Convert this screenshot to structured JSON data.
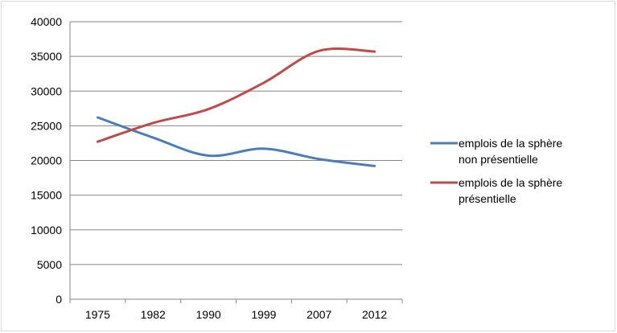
{
  "chart_data": {
    "type": "line",
    "categories": [
      "1975",
      "1982",
      "1990",
      "1999",
      "2007",
      "2012"
    ],
    "ylim": [
      0,
      40000
    ],
    "yticks": [
      "0",
      "5000",
      "10000",
      "15000",
      "20000",
      "25000",
      "30000",
      "35000",
      "40000"
    ],
    "grid": true,
    "legend_position": "right",
    "series": [
      {
        "name_lines": [
          "emplois de la sphère",
          "non présentielle"
        ],
        "color": "#4a7ebb",
        "values": [
          26200,
          23300,
          20700,
          21700,
          20200,
          19200
        ]
      },
      {
        "name_lines": [
          "emplois de la sphère",
          "présentielle"
        ],
        "color": "#be4b48",
        "values": [
          22700,
          25400,
          27400,
          31200,
          35800,
          35700
        ]
      }
    ]
  }
}
